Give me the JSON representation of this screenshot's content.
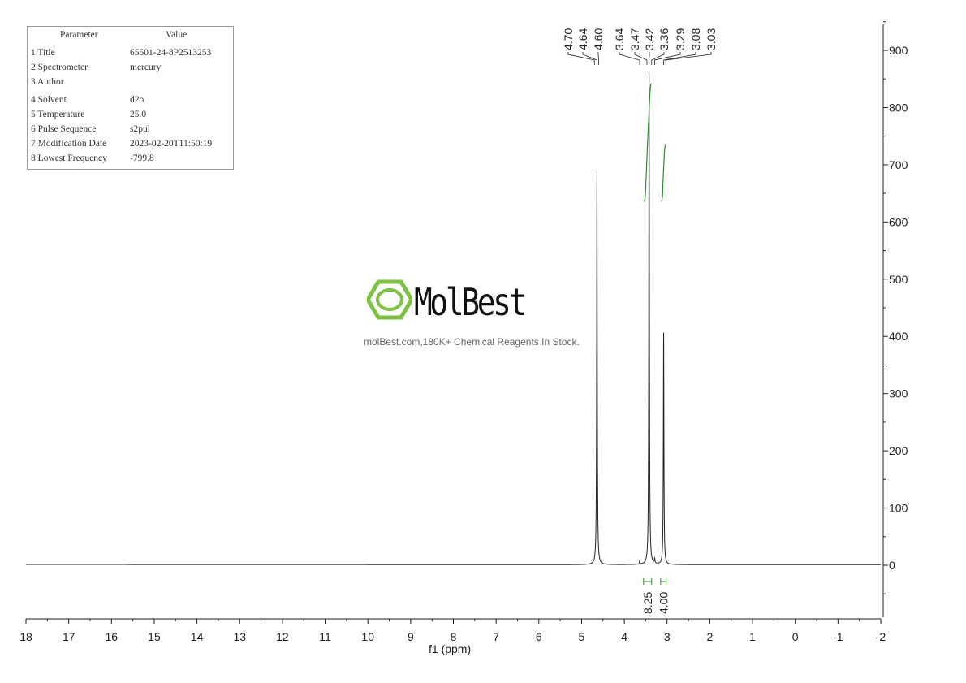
{
  "params": {
    "header": [
      "Parameter",
      "Value"
    ],
    "rows": [
      [
        "1 Title",
        "65501-24-8P2513253"
      ],
      [
        "2 Spectrometer",
        "mercury"
      ],
      [
        "3 Author",
        ""
      ],
      [
        "4 Solvent",
        "d2o"
      ],
      [
        "5 Temperature",
        "25.0"
      ],
      [
        "6 Pulse Sequence",
        "s2pul"
      ],
      [
        "7 Modification Date",
        "2023-02-20T11:50:19"
      ],
      [
        "8 Lowest Frequency",
        "-799.8"
      ]
    ]
  },
  "watermark": {
    "brand": "MolBest",
    "tagline": "molBest.com,180K+ Chemical Reagents In Stock.",
    "brand_color": "#7dc242"
  },
  "chart_data": {
    "type": "line",
    "xlabel": "f1 (ppm)",
    "ylabel": "",
    "xlim": [
      18,
      -2
    ],
    "ylim": [
      -95,
      950
    ],
    "x_ticks": [
      "18",
      "17",
      "16",
      "15",
      "14",
      "13",
      "12",
      "11",
      "10",
      "9",
      "8",
      "7",
      "6",
      "5",
      "4",
      "3",
      "2",
      "1",
      "0",
      "-1",
      "-2"
    ],
    "y_ticks": [
      "0",
      "100",
      "200",
      "300",
      "400",
      "500",
      "600",
      "700",
      "800",
      "900"
    ],
    "peaks": [
      {
        "ppm": 4.64,
        "height": 687
      },
      {
        "ppm": 3.42,
        "height": 860
      },
      {
        "ppm": 3.08,
        "height": 405
      },
      {
        "ppm": 3.64,
        "height": 6
      },
      {
        "ppm": 3.29,
        "height": 8
      }
    ],
    "peak_labels": [
      "4.70",
      "4.64",
      "4.60",
      "3.64",
      "3.47",
      "3.42",
      "3.36",
      "3.29",
      "3.08",
      "3.03"
    ],
    "integrals": [
      {
        "from": 3.55,
        "to": 3.36,
        "value": "8.25"
      },
      {
        "from": 3.15,
        "to": 3.02,
        "value": "4.00"
      }
    ],
    "line_color": "#222222",
    "integral_color": "#2e8b2e",
    "grid": false
  }
}
